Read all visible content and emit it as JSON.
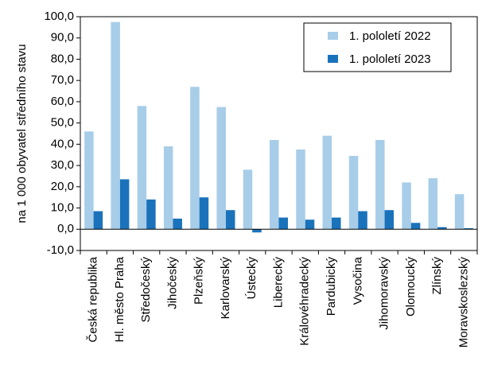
{
  "chart_data": {
    "type": "bar",
    "title": "",
    "xlabel": "",
    "ylabel": "na 1 000 obyvatel středního stavu",
    "ylim": [
      -10,
      100
    ],
    "yticks": [
      -10,
      0,
      10,
      20,
      30,
      40,
      50,
      60,
      70,
      80,
      90,
      100
    ],
    "ytick_labels": [
      "-10,0",
      "0,0",
      "10,0",
      "20,0",
      "30,0",
      "40,0",
      "50,0",
      "60,0",
      "70,0",
      "80,0",
      "90,0",
      "100,0"
    ],
    "categories": [
      "Česká republika",
      "Hl. město Praha",
      "Středočeský",
      "Jihočeský",
      "Plzeňský",
      "Karlovarský",
      "Ústecký",
      "Liberecký",
      "Královéhradecký",
      "Pardubický",
      "Vysočina",
      "Jihomoravský",
      "Olomoucký",
      "Zlínský",
      "Moravskoslezský"
    ],
    "series": [
      {
        "name": "1. pololetí 2022",
        "color": "#a8cde8",
        "values": [
          46.0,
          97.5,
          58.0,
          39.0,
          67.0,
          57.5,
          28.0,
          42.0,
          37.5,
          44.0,
          34.5,
          42.0,
          22.0,
          24.0,
          16.5
        ]
      },
      {
        "name": "1. pololetí 2023",
        "color": "#1a72bb",
        "values": [
          8.5,
          23.5,
          14.0,
          5.0,
          15.0,
          9.0,
          -1.5,
          5.5,
          4.5,
          5.5,
          8.5,
          9.0,
          3.0,
          1.0,
          0.5
        ]
      }
    ],
    "grid": false,
    "legend": "top-right"
  }
}
